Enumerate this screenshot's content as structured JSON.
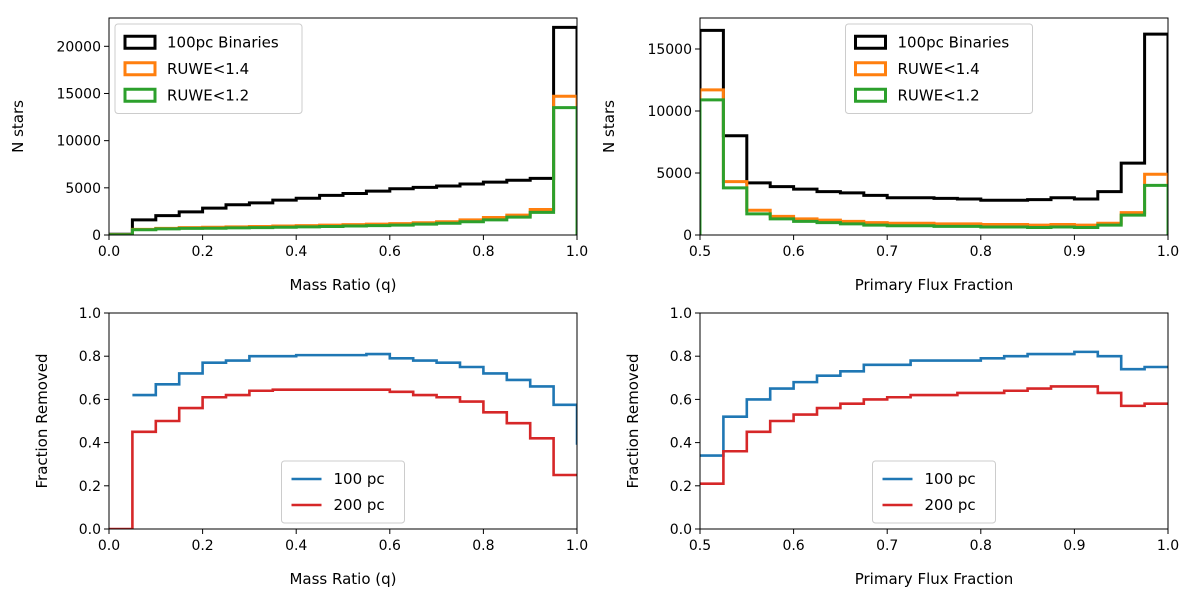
{
  "chart_data": [
    {
      "id": "top-left",
      "type": "histogram",
      "xlabel": "Mass Ratio (q)",
      "ylabel": "N stars",
      "xlim": [
        0.0,
        1.0
      ],
      "ylim": [
        0,
        23000
      ],
      "xticks": [
        0.0,
        0.2,
        0.4,
        0.6,
        0.8,
        1.0
      ],
      "xtick_labels": [
        "0.0",
        "0.2",
        "0.4",
        "0.6",
        "0.8",
        "1.0"
      ],
      "yticks": [
        0,
        5000,
        10000,
        15000,
        20000
      ],
      "ytick_labels": [
        "0",
        "5000",
        "10000",
        "15000",
        "20000"
      ],
      "bin_edges": [
        0.0,
        0.05,
        0.1,
        0.15,
        0.2,
        0.25,
        0.3,
        0.35,
        0.4,
        0.45,
        0.5,
        0.55,
        0.6,
        0.65,
        0.7,
        0.75,
        0.8,
        0.85,
        0.9,
        0.95,
        1.0
      ],
      "legend_position": "upper-left",
      "series": [
        {
          "name": "100pc Binaries",
          "color": "#000000",
          "values": [
            80,
            1600,
            2050,
            2450,
            2850,
            3200,
            3400,
            3700,
            3900,
            4200,
            4400,
            4650,
            4900,
            5050,
            5200,
            5400,
            5600,
            5800,
            6000,
            22000
          ]
        },
        {
          "name": "RUWE<1.4",
          "color": "#ff7f0e",
          "values": [
            40,
            600,
            700,
            780,
            820,
            860,
            900,
            950,
            1000,
            1050,
            1100,
            1150,
            1200,
            1300,
            1400,
            1600,
            1850,
            2100,
            2700,
            14700
          ]
        },
        {
          "name": "RUWE<1.2",
          "color": "#2ca02c",
          "values": [
            30,
            550,
            650,
            700,
            720,
            760,
            780,
            820,
            860,
            900,
            950,
            1000,
            1050,
            1150,
            1250,
            1400,
            1600,
            1900,
            2400,
            13500
          ]
        }
      ]
    },
    {
      "id": "top-right",
      "type": "histogram",
      "xlabel": "Primary Flux Fraction",
      "ylabel": "N stars",
      "xlim": [
        0.5,
        1.0
      ],
      "ylim": [
        0,
        17500
      ],
      "xticks": [
        0.5,
        0.6,
        0.7,
        0.8,
        0.9,
        1.0
      ],
      "xtick_labels": [
        "0.5",
        "0.6",
        "0.7",
        "0.8",
        "0.9",
        "1.0"
      ],
      "yticks": [
        0,
        5000,
        10000,
        15000
      ],
      "ytick_labels": [
        "0",
        "5000",
        "10000",
        "15000"
      ],
      "bin_edges": [
        0.5,
        0.525,
        0.55,
        0.575,
        0.6,
        0.625,
        0.65,
        0.675,
        0.7,
        0.725,
        0.75,
        0.775,
        0.8,
        0.825,
        0.85,
        0.875,
        0.9,
        0.925,
        0.95,
        0.975,
        1.0
      ],
      "legend_position": "upper-center",
      "series": [
        {
          "name": "100pc Binaries",
          "color": "#000000",
          "values": [
            16500,
            8000,
            4200,
            3900,
            3700,
            3500,
            3400,
            3200,
            3000,
            3000,
            2950,
            2900,
            2800,
            2800,
            2850,
            3000,
            2900,
            3500,
            5800,
            16200
          ]
        },
        {
          "name": "RUWE<1.4",
          "color": "#ff7f0e",
          "values": [
            11700,
            4300,
            2000,
            1500,
            1300,
            1200,
            1100,
            1000,
            950,
            950,
            900,
            900,
            850,
            850,
            800,
            850,
            800,
            950,
            1800,
            4900
          ]
        },
        {
          "name": "RUWE<1.2",
          "color": "#2ca02c",
          "values": [
            10900,
            3800,
            1700,
            1300,
            1100,
            1000,
            900,
            800,
            750,
            750,
            700,
            700,
            650,
            650,
            600,
            650,
            600,
            800,
            1600,
            4000
          ]
        }
      ]
    },
    {
      "id": "bottom-left",
      "type": "step",
      "xlabel": "Mass Ratio (q)",
      "ylabel": "Fraction Removed",
      "xlim": [
        0.0,
        1.0
      ],
      "ylim": [
        0.0,
        1.0
      ],
      "xticks": [
        0.0,
        0.2,
        0.4,
        0.6,
        0.8,
        1.0
      ],
      "xtick_labels": [
        "0.0",
        "0.2",
        "0.4",
        "0.6",
        "0.8",
        "1.0"
      ],
      "yticks": [
        0.0,
        0.2,
        0.4,
        0.6,
        0.8,
        1.0
      ],
      "ytick_labels": [
        "0.0",
        "0.2",
        "0.4",
        "0.6",
        "0.8",
        "1.0"
      ],
      "bin_edges": [
        0.0,
        0.05,
        0.1,
        0.15,
        0.2,
        0.25,
        0.3,
        0.35,
        0.4,
        0.45,
        0.5,
        0.55,
        0.6,
        0.65,
        0.7,
        0.75,
        0.8,
        0.85,
        0.9,
        0.95,
        1.0
      ],
      "legend_position": "lower-center",
      "series": [
        {
          "name": "100 pc",
          "color": "#1f77b4",
          "values": [
            null,
            0.62,
            0.67,
            0.72,
            0.77,
            0.78,
            0.8,
            0.8,
            0.805,
            0.805,
            0.805,
            0.81,
            0.79,
            0.78,
            0.77,
            0.75,
            0.72,
            0.69,
            0.66,
            0.575,
            0.39
          ]
        },
        {
          "name": "200 pc",
          "color": "#d62728",
          "values": [
            0.0,
            0.45,
            0.5,
            0.56,
            0.61,
            0.62,
            0.64,
            0.645,
            0.645,
            0.645,
            0.645,
            0.645,
            0.635,
            0.62,
            0.61,
            0.59,
            0.54,
            0.49,
            0.42,
            0.25
          ]
        }
      ]
    },
    {
      "id": "bottom-right",
      "type": "step",
      "xlabel": "Primary Flux Fraction",
      "ylabel": "Fraction Removed",
      "xlim": [
        0.5,
        1.0
      ],
      "ylim": [
        0.0,
        1.0
      ],
      "xticks": [
        0.5,
        0.6,
        0.7,
        0.8,
        0.9,
        1.0
      ],
      "xtick_labels": [
        "0.5",
        "0.6",
        "0.7",
        "0.8",
        "0.9",
        "1.0"
      ],
      "yticks": [
        0.0,
        0.2,
        0.4,
        0.6,
        0.8,
        1.0
      ],
      "ytick_labels": [
        "0.0",
        "0.2",
        "0.4",
        "0.6",
        "0.8",
        "1.0"
      ],
      "bin_edges": [
        0.5,
        0.525,
        0.55,
        0.575,
        0.6,
        0.625,
        0.65,
        0.675,
        0.7,
        0.725,
        0.75,
        0.775,
        0.8,
        0.825,
        0.85,
        0.875,
        0.9,
        0.925,
        0.95,
        0.975,
        1.0
      ],
      "legend_position": "lower-center",
      "series": [
        {
          "name": "100 pc",
          "color": "#1f77b4",
          "values": [
            0.34,
            0.52,
            0.6,
            0.65,
            0.68,
            0.71,
            0.73,
            0.76,
            0.76,
            0.78,
            0.78,
            0.78,
            0.79,
            0.8,
            0.81,
            0.81,
            0.82,
            0.8,
            0.74,
            0.75
          ]
        },
        {
          "name": "200 pc",
          "color": "#d62728",
          "values": [
            0.21,
            0.36,
            0.45,
            0.5,
            0.53,
            0.56,
            0.58,
            0.6,
            0.61,
            0.62,
            0.62,
            0.63,
            0.63,
            0.64,
            0.65,
            0.66,
            0.66,
            0.63,
            0.57,
            0.58
          ]
        }
      ]
    }
  ]
}
